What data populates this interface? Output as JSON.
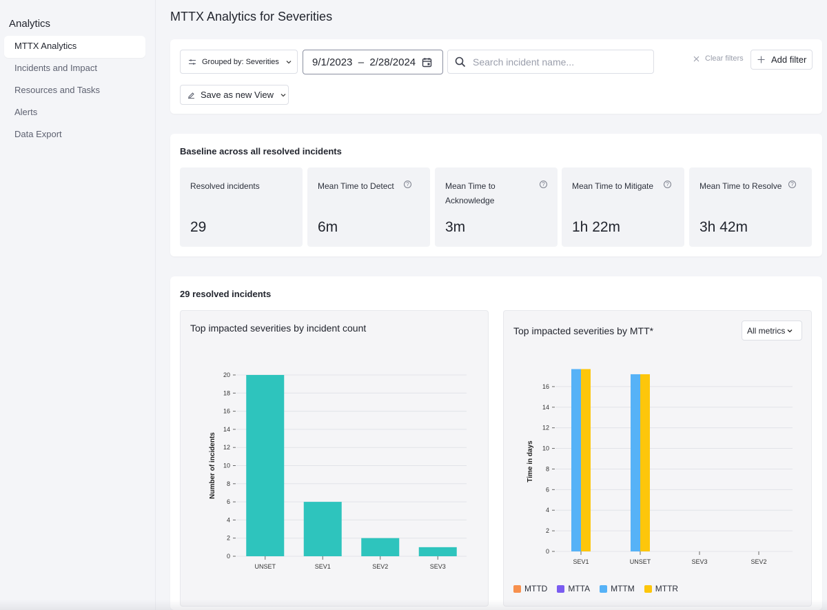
{
  "sidebar": {
    "title": "Analytics",
    "items": [
      {
        "label": "MTTX Analytics",
        "active": true
      },
      {
        "label": "Incidents and Impact"
      },
      {
        "label": "Resources and Tasks"
      },
      {
        "label": "Alerts"
      },
      {
        "label": "Data Export"
      }
    ]
  },
  "page": {
    "title": "MTTX Analytics for Severities"
  },
  "filters": {
    "group_by": "Grouped by: Severities",
    "date_range": "9/1/2023  –  2/28/2024",
    "search_placeholder": "Search incident name...",
    "clear_label": "Clear filters",
    "add_filter_label": "Add filter",
    "save_view_label": "Save as new View"
  },
  "baseline": {
    "title": "Baseline across all resolved incidents",
    "metrics": [
      {
        "label": "Resolved incidents",
        "value": "29",
        "help": false
      },
      {
        "label": "Mean Time to Detect",
        "value": "6m",
        "help": true
      },
      {
        "label": "Mean Time to Acknowledge",
        "value": "3m",
        "help": true
      },
      {
        "label": "Mean Time to Mitigate",
        "value": "1h 22m",
        "help": true
      },
      {
        "label": "Mean Time to Resolve",
        "value": "3h 42m",
        "help": true
      }
    ]
  },
  "resolved": {
    "title": "29 resolved incidents"
  },
  "colors": {
    "teal": "#2ec4bd",
    "mttd": "#f7904d",
    "mtta": "#7a5cf0",
    "mttm": "#56b2f7",
    "mttr": "#fdc60b"
  },
  "chart_data": [
    {
      "type": "bar",
      "title": "Top impacted severities by incident count",
      "ylabel": "Number of incidents",
      "xlabel": "",
      "categories": [
        "UNSET",
        "SEV1",
        "SEV2",
        "SEV3"
      ],
      "values": [
        20,
        6,
        2,
        1
      ],
      "ylim": [
        0,
        20
      ],
      "yticks": [
        0,
        2,
        4,
        6,
        8,
        10,
        12,
        14,
        16,
        18,
        20
      ],
      "grid": true
    },
    {
      "type": "bar",
      "title": "Top impacted severities by MTT*",
      "ylabel": "Time in days",
      "xlabel": "",
      "metric_select": "All metrics",
      "categories": [
        "SEV1",
        "UNSET",
        "SEV3",
        "SEV2"
      ],
      "series": [
        {
          "name": "MTTD",
          "values": [
            0,
            0,
            0,
            0
          ]
        },
        {
          "name": "MTTA",
          "values": [
            0,
            0,
            0,
            0
          ]
        },
        {
          "name": "MTTM",
          "values": [
            17.7,
            17.2,
            0,
            0
          ]
        },
        {
          "name": "MTTR",
          "values": [
            17.7,
            17.2,
            0,
            0
          ]
        }
      ],
      "ylim": [
        0,
        18
      ],
      "yticks": [
        0,
        2,
        4,
        6,
        8,
        10,
        12,
        14,
        16
      ],
      "grid": true,
      "legend": "bottom-left"
    }
  ]
}
